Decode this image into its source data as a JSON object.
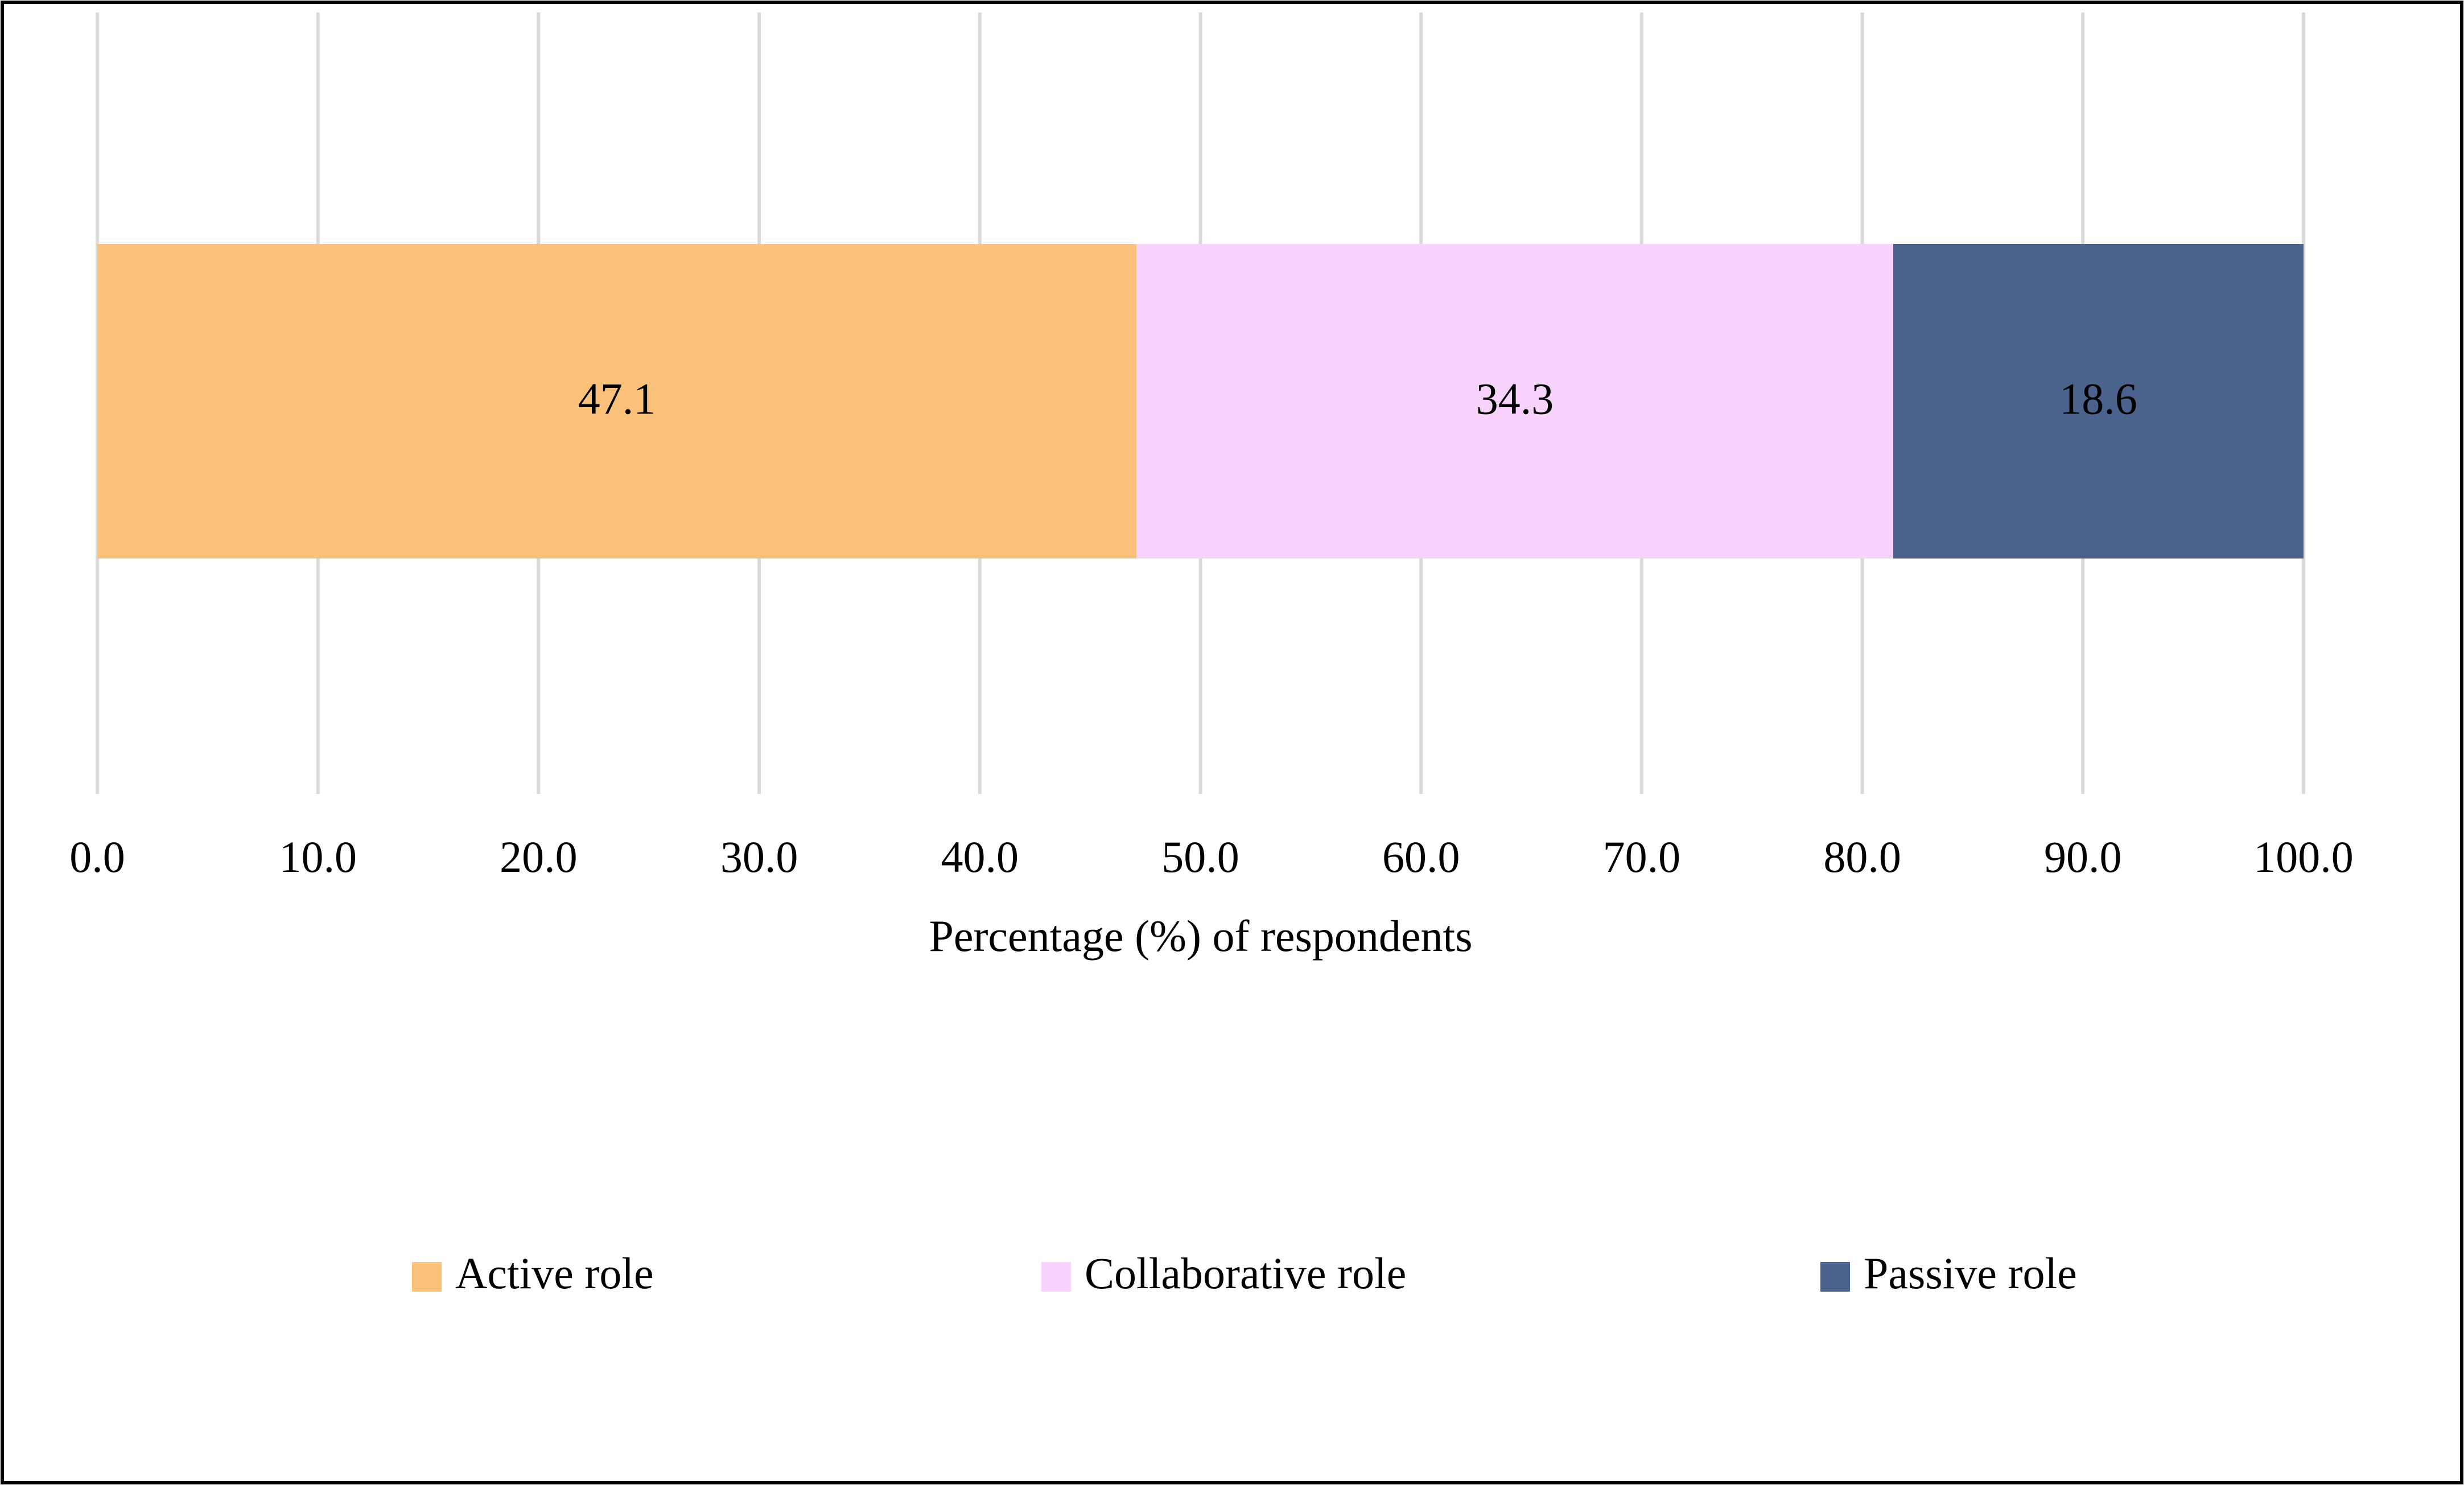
{
  "chart_data": {
    "type": "stacked_barh",
    "xlabel": "Percentage (%) of respondents",
    "categories": [
      null
    ],
    "series": [
      {
        "name": "Active role",
        "color": "#F9C17A",
        "values": [
          47.1
        ]
      },
      {
        "name": "Collaborative role",
        "color": "#F7D3FC",
        "values": [
          34.3
        ]
      },
      {
        "name": "Passive role",
        "color": "#4A628C",
        "values": [
          18.6
        ]
      }
    ],
    "xlim": [
      0,
      100
    ],
    "xticks": [
      {
        "value": 0,
        "label": "0.0"
      },
      {
        "value": 10,
        "label": "10.0"
      },
      {
        "value": 20,
        "label": "20.0"
      },
      {
        "value": 30,
        "label": "30.0"
      },
      {
        "value": 40,
        "label": "40.0"
      },
      {
        "value": 50,
        "label": "50.0"
      },
      {
        "value": 60,
        "label": "60.0"
      },
      {
        "value": 70,
        "label": "70.0"
      },
      {
        "value": 80,
        "label": "80.0"
      },
      {
        "value": 90,
        "label": "90.0"
      },
      {
        "value": 100,
        "label": "100.0"
      }
    ],
    "grid": true,
    "legend": "bottom"
  }
}
